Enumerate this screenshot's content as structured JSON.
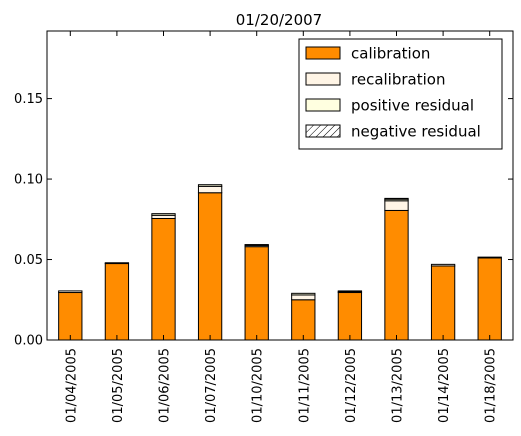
{
  "chart_data": {
    "type": "bar",
    "stacked": true,
    "title": "01/20/2007",
    "xlabel": "",
    "ylabel": "",
    "ylim": [
      0,
      0.192
    ],
    "yticks": [
      0.0,
      0.05,
      0.1,
      0.15
    ],
    "ytick_labels": [
      "0.00",
      "0.05",
      "0.10",
      "0.15"
    ],
    "grid": false,
    "legend_position": "top-right",
    "categories": [
      "01/04/2005",
      "01/05/2005",
      "01/06/2005",
      "01/07/2005",
      "01/10/2005",
      "01/11/2005",
      "01/12/2005",
      "01/13/2005",
      "01/14/2005",
      "01/18/2005"
    ],
    "series": [
      {
        "name": "calibration",
        "color": "#ff8c00",
        "hatch": false,
        "values": [
          0.0295,
          0.0475,
          0.0755,
          0.0915,
          0.058,
          0.025,
          0.0295,
          0.0805,
          0.046,
          0.051
        ]
      },
      {
        "name": "recalibration",
        "color": "#fff5e6",
        "hatch": false,
        "values": [
          0.001,
          0.0005,
          0.002,
          0.004,
          0.0008,
          0.003,
          0.0005,
          0.006,
          0.001,
          0.0005
        ]
      },
      {
        "name": "positive residual",
        "color": "#ffffe0",
        "hatch": false,
        "values": [
          0.0,
          0.0,
          0.001,
          0.001,
          0.0005,
          0.001,
          0.0005,
          0.001,
          0.0,
          0.0
        ]
      },
      {
        "name": "negative residual",
        "color": "#ffffff",
        "hatch": true,
        "values": [
          0.0,
          0.0,
          0.0,
          0.0,
          0.0,
          0.0,
          0.0,
          0.0005,
          0.0,
          0.0
        ]
      }
    ]
  }
}
